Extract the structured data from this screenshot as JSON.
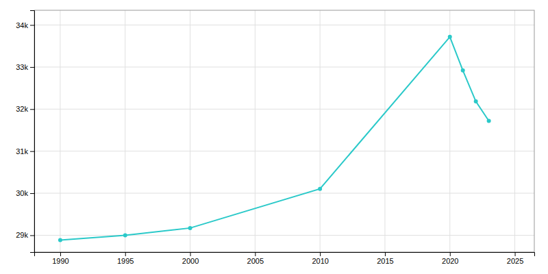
{
  "chart_data": {
    "type": "line",
    "x": [
      1990,
      1995,
      2000,
      2010,
      2020,
      2021,
      2022,
      2023
    ],
    "values": [
      28887,
      29000,
      29172,
      30104,
      33718,
      32920,
      32183,
      31720
    ],
    "color": "#2ac9c9",
    "marker": "circle",
    "xlim": [
      1988,
      2026.5
    ],
    "ylim": [
      28600,
      34350
    ],
    "xticks": [
      1990,
      1995,
      2000,
      2005,
      2010,
      2015,
      2020,
      2025
    ],
    "yticks": [
      {
        "value": 29000,
        "label": "29k"
      },
      {
        "value": 30000,
        "label": "30k"
      },
      {
        "value": 31000,
        "label": "31k"
      },
      {
        "value": 32000,
        "label": "32k"
      },
      {
        "value": 33000,
        "label": "33k"
      },
      {
        "value": 34000,
        "label": "34k"
      }
    ],
    "grid": true
  }
}
